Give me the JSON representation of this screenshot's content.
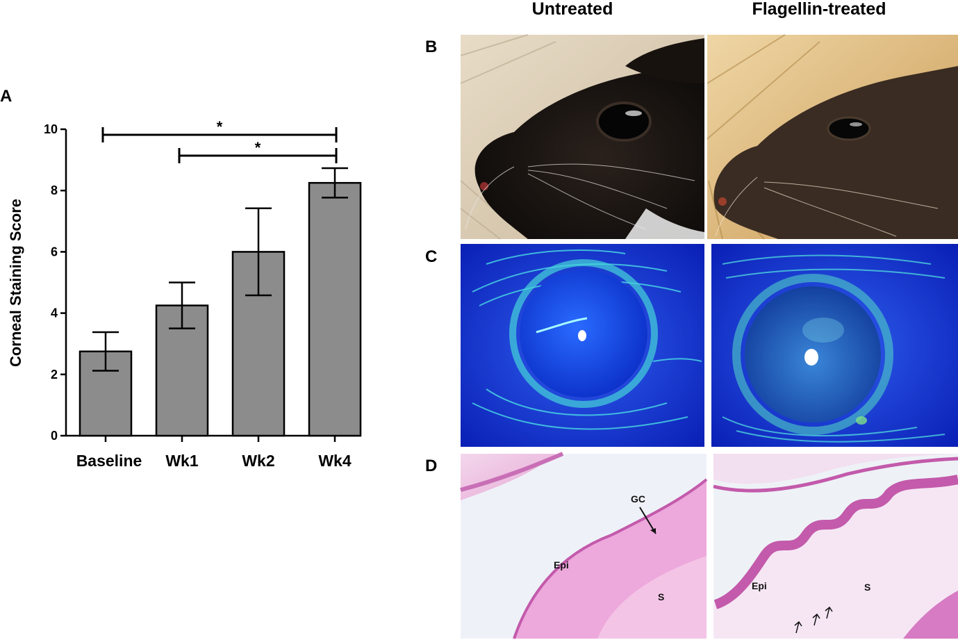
{
  "panels": {
    "a": "A",
    "b": "B",
    "c": "C",
    "d": "D"
  },
  "columns": {
    "left": "Untreated",
    "right": "Flagellin-treated"
  },
  "histology_labels": {
    "untreated": {
      "gc": "GC",
      "epi": "Epi",
      "s": "S"
    },
    "treated": {
      "epi": "Epi",
      "s": "S"
    }
  },
  "chart_data": {
    "type": "bar",
    "title": "",
    "xlabel": "",
    "ylabel": "Corneal Staining Score",
    "categories": [
      "Baseline",
      "Wk1",
      "Wk2",
      "Wk4"
    ],
    "values": [
      2.75,
      4.25,
      6.0,
      8.25
    ],
    "errors": [
      0.63,
      0.75,
      1.42,
      0.48
    ],
    "ylim": [
      0,
      10
    ],
    "yticks": [
      0,
      2,
      4,
      6,
      8,
      10
    ],
    "bar_color": "#8c8c8c",
    "grid": false,
    "significance": [
      {
        "from": "Baseline",
        "to": "Wk4",
        "label": "*"
      },
      {
        "from": "Wk1",
        "to": "Wk4",
        "label": "*"
      }
    ]
  }
}
